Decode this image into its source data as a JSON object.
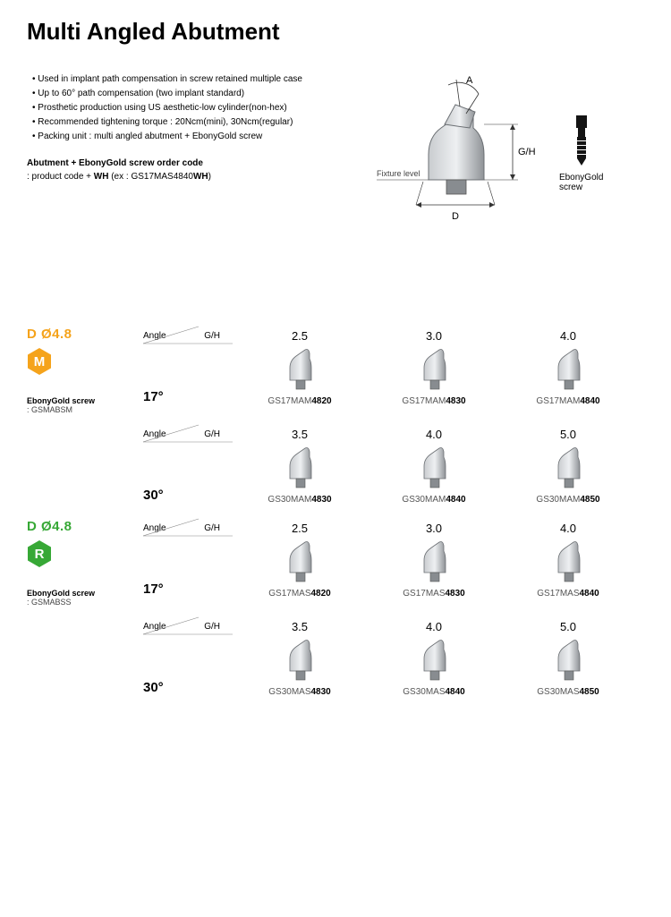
{
  "title": "Multi Angled Abutment",
  "bullets": [
    "Used in implant path compensation in screw retained multiple case",
    "Up to 60° path compensation (two implant standard)",
    "Prosthetic production using US aesthetic-low cylinder(non-hex)",
    "Recommended tightening torque : 20Ncm(mini), 30Ncm(regular)",
    "Packing unit : multi angled abutment + EbonyGold screw"
  ],
  "order_code_heading": "Abutment + EbonyGold screw   order code",
  "order_code_example": ": product code + WH (ex : GS17MAS4840WH)",
  "diagram": {
    "label_A": "A",
    "label_GH": "G/H",
    "label_D": "D",
    "fixture_level": "Fixture level"
  },
  "screw_label": "EbonyGold\nscrew",
  "colors": {
    "orange": "#f5a31b",
    "green": "#37a836",
    "metal_light": "#d8dadd",
    "metal_mid": "#aeb2b6",
    "metal_dark": "#7b7f83",
    "screw_black": "#141414",
    "line": "#333333"
  },
  "header_labels": {
    "angle": "Angle",
    "gh": "G/H"
  },
  "sections": [
    {
      "diameter": "D Ø4.8",
      "color_key": "orange",
      "badge_letter": "M",
      "ebony_label": "EbonyGold screw",
      "ebony_code": ": GSMABSM",
      "rows": [
        {
          "gh_values": [
            "2.5",
            "3.0",
            "4.0"
          ],
          "angle": "17°",
          "codes": [
            {
              "pre": "GS17MAM",
              "bold": "4820"
            },
            {
              "pre": "GS17MAM",
              "bold": "4830"
            },
            {
              "pre": "GS17MAM",
              "bold": "4840"
            }
          ]
        },
        {
          "gh_values": [
            "3.5",
            "4.0",
            "5.0"
          ],
          "angle": "30°",
          "codes": [
            {
              "pre": "GS30MAM",
              "bold": "4830"
            },
            {
              "pre": "GS30MAM",
              "bold": "4840"
            },
            {
              "pre": "GS30MAM",
              "bold": "4850"
            }
          ]
        }
      ]
    },
    {
      "diameter": "D Ø4.8",
      "color_key": "green",
      "badge_letter": "R",
      "ebony_label": "EbonyGold screw",
      "ebony_code": ": GSMABSS",
      "rows": [
        {
          "gh_values": [
            "2.5",
            "3.0",
            "4.0"
          ],
          "angle": "17°",
          "codes": [
            {
              "pre": "GS17MAS",
              "bold": "4820"
            },
            {
              "pre": "GS17MAS",
              "bold": "4830"
            },
            {
              "pre": "GS17MAS",
              "bold": "4840"
            }
          ]
        },
        {
          "gh_values": [
            "3.5",
            "4.0",
            "5.0"
          ],
          "angle": "30°",
          "codes": [
            {
              "pre": "GS30MAS",
              "bold": "4830"
            },
            {
              "pre": "GS30MAS",
              "bold": "4840"
            },
            {
              "pre": "GS30MAS",
              "bold": "4850"
            }
          ]
        }
      ]
    }
  ]
}
